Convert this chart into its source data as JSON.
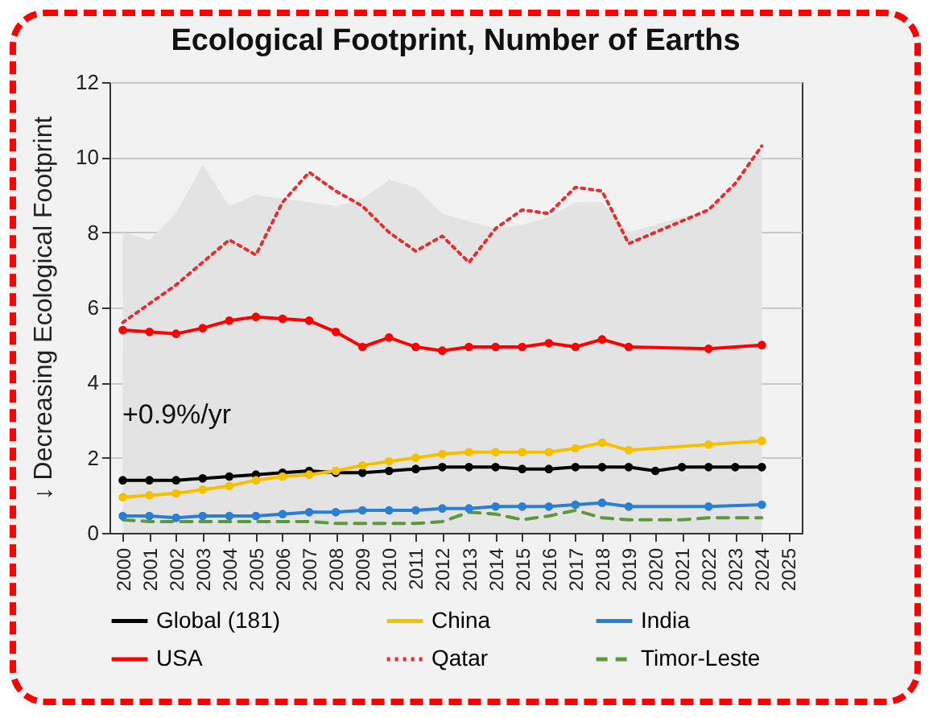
{
  "chart_data": {
    "type": "line",
    "title": "Ecological Footprint, Number of Earths",
    "ylabel": "↓ Decreasing Ecological Footprint",
    "annotations": [
      "+0.9%/yr"
    ],
    "categories": [
      "2000",
      "2001",
      "2002",
      "2003",
      "2004",
      "2005",
      "2006",
      "2007",
      "2008",
      "2009",
      "2010",
      "2011",
      "2012",
      "2013",
      "2014",
      "2015",
      "2016",
      "2017",
      "2018",
      "2019",
      "2020",
      "2021",
      "2022",
      "2023",
      "2024",
      "2025"
    ],
    "ylim": [
      0,
      12
    ],
    "yticks": [
      0,
      2,
      4,
      6,
      8,
      10,
      12
    ],
    "grid": "y",
    "legend": "bottom",
    "series": [
      {
        "type": "area",
        "color": "#e3e3e3",
        "values": [
          8.0,
          7.8,
          8.5,
          9.8,
          8.7,
          9.0,
          8.9,
          8.8,
          8.7,
          8.9,
          9.4,
          9.2,
          8.5,
          8.3,
          8.1,
          8.2,
          8.4,
          8.8,
          8.8,
          8.0,
          8.2,
          8.4,
          8.6,
          9.3,
          10.2,
          null
        ]
      },
      {
        "name": "Global (181)",
        "color": "#000000",
        "marker": "circle",
        "line_style": "solid",
        "values": [
          1.4,
          1.4,
          1.4,
          1.45,
          1.5,
          1.55,
          1.6,
          1.65,
          1.6,
          1.6,
          1.65,
          1.7,
          1.75,
          1.75,
          1.75,
          1.7,
          1.7,
          1.75,
          1.75,
          1.75,
          1.65,
          1.75,
          1.75,
          1.75,
          1.75,
          null
        ]
      },
      {
        "name": "China",
        "color": "#f5c000",
        "marker": "circle",
        "line_style": "solid",
        "values": [
          0.95,
          1.0,
          1.05,
          1.15,
          1.25,
          1.4,
          1.5,
          1.55,
          1.65,
          1.8,
          1.9,
          2.0,
          2.1,
          2.15,
          2.15,
          2.15,
          2.15,
          2.25,
          2.4,
          2.2,
          null,
          null,
          2.35,
          null,
          2.45,
          null
        ]
      },
      {
        "name": "India",
        "color": "#2a7fd4",
        "marker": "circle",
        "line_style": "solid",
        "values": [
          0.45,
          0.45,
          0.4,
          0.45,
          0.45,
          0.45,
          0.5,
          0.55,
          0.55,
          0.6,
          0.6,
          0.6,
          0.65,
          0.65,
          0.7,
          0.7,
          0.7,
          0.75,
          0.8,
          0.7,
          null,
          null,
          0.7,
          null,
          0.75,
          null
        ]
      },
      {
        "name": "USA",
        "color": "#ff0000",
        "marker": "circle",
        "line_style": "solid",
        "values": [
          5.4,
          5.35,
          5.3,
          5.45,
          5.65,
          5.75,
          5.7,
          5.65,
          5.35,
          4.95,
          5.2,
          4.95,
          4.85,
          4.95,
          4.95,
          4.95,
          5.05,
          4.95,
          5.15,
          4.95,
          null,
          null,
          4.9,
          null,
          5.0,
          null
        ]
      },
      {
        "name": "Qatar",
        "color": "#e03030",
        "marker": "none",
        "line_style": "dotted",
        "values": [
          5.6,
          6.1,
          6.6,
          7.2,
          7.8,
          7.4,
          8.8,
          9.6,
          9.1,
          8.7,
          8.0,
          7.5,
          7.9,
          7.2,
          8.1,
          8.6,
          8.5,
          9.2,
          9.1,
          7.7,
          8.0,
          8.3,
          8.6,
          9.3,
          10.3,
          null
        ]
      },
      {
        "name": "Timor-Leste",
        "color": "#5a9a3a",
        "marker": "none",
        "line_style": "dashed",
        "values": [
          0.35,
          0.3,
          0.3,
          0.3,
          0.3,
          0.3,
          0.3,
          0.3,
          0.25,
          0.25,
          0.25,
          0.25,
          0.3,
          0.55,
          0.5,
          0.35,
          0.45,
          0.6,
          0.4,
          0.35,
          0.35,
          0.35,
          0.4,
          0.4,
          0.4,
          null
        ]
      }
    ]
  }
}
